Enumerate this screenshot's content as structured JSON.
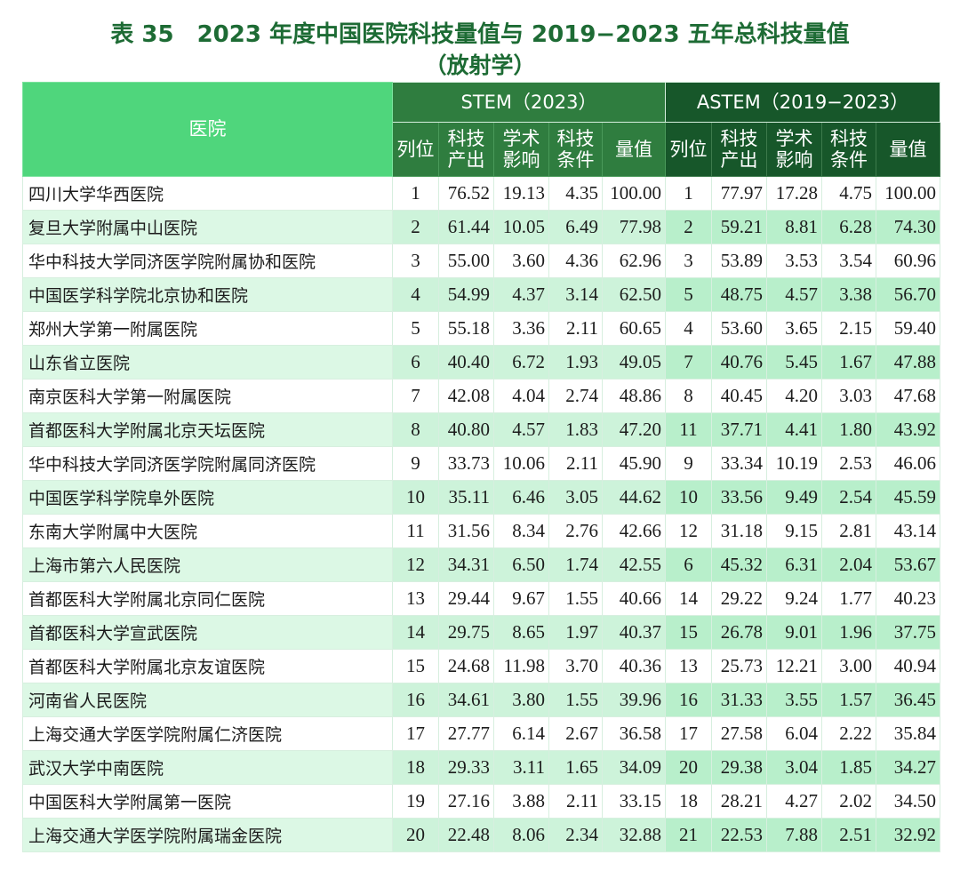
{
  "title": {
    "line1": "表 35　2023 年度中国医院科技量值与 2019−2023 五年总科技量值",
    "line2": "（放射学）"
  },
  "colors": {
    "title": "#1d6b34",
    "hospital_header": "#4fd67c",
    "stem_header": "#2f7d3f",
    "astem_header": "#17572a",
    "stripe": "#cdf3da"
  },
  "header": {
    "hospital": "医院",
    "stem": "STEM（2023）",
    "astem": "ASTEM（2019−2023）",
    "sub": [
      "列位",
      "科技产出",
      "学术影响",
      "科技条件",
      "量值",
      "列位",
      "科技产出",
      "学术影响",
      "科技条件",
      "量值"
    ]
  },
  "rows": [
    [
      "四川大学华西医院",
      "1",
      "76.52",
      "19.13",
      "4.35",
      "100.00",
      "1",
      "77.97",
      "17.28",
      "4.75",
      "100.00"
    ],
    [
      "复旦大学附属中山医院",
      "2",
      "61.44",
      "10.05",
      "6.49",
      "77.98",
      "2",
      "59.21",
      "8.81",
      "6.28",
      "74.30"
    ],
    [
      "华中科技大学同济医学院附属协和医院",
      "3",
      "55.00",
      "3.60",
      "4.36",
      "62.96",
      "3",
      "53.89",
      "3.53",
      "3.54",
      "60.96"
    ],
    [
      "中国医学科学院北京协和医院",
      "4",
      "54.99",
      "4.37",
      "3.14",
      "62.50",
      "5",
      "48.75",
      "4.57",
      "3.38",
      "56.70"
    ],
    [
      "郑州大学第一附属医院",
      "5",
      "55.18",
      "3.36",
      "2.11",
      "60.65",
      "4",
      "53.60",
      "3.65",
      "2.15",
      "59.40"
    ],
    [
      "山东省立医院",
      "6",
      "40.40",
      "6.72",
      "1.93",
      "49.05",
      "7",
      "40.76",
      "5.45",
      "1.67",
      "47.88"
    ],
    [
      "南京医科大学第一附属医院",
      "7",
      "42.08",
      "4.04",
      "2.74",
      "48.86",
      "8",
      "40.45",
      "4.20",
      "3.03",
      "47.68"
    ],
    [
      "首都医科大学附属北京天坛医院",
      "8",
      "40.80",
      "4.57",
      "1.83",
      "47.20",
      "11",
      "37.71",
      "4.41",
      "1.80",
      "43.92"
    ],
    [
      "华中科技大学同济医学院附属同济医院",
      "9",
      "33.73",
      "10.06",
      "2.11",
      "45.90",
      "9",
      "33.34",
      "10.19",
      "2.53",
      "46.06"
    ],
    [
      "中国医学科学院阜外医院",
      "10",
      "35.11",
      "6.46",
      "3.05",
      "44.62",
      "10",
      "33.56",
      "9.49",
      "2.54",
      "45.59"
    ],
    [
      "东南大学附属中大医院",
      "11",
      "31.56",
      "8.34",
      "2.76",
      "42.66",
      "12",
      "31.18",
      "9.15",
      "2.81",
      "43.14"
    ],
    [
      "上海市第六人民医院",
      "12",
      "34.31",
      "6.50",
      "1.74",
      "42.55",
      "6",
      "45.32",
      "6.31",
      "2.04",
      "53.67"
    ],
    [
      "首都医科大学附属北京同仁医院",
      "13",
      "29.44",
      "9.67",
      "1.55",
      "40.66",
      "14",
      "29.22",
      "9.24",
      "1.77",
      "40.23"
    ],
    [
      "首都医科大学宣武医院",
      "14",
      "29.75",
      "8.65",
      "1.97",
      "40.37",
      "15",
      "26.78",
      "9.01",
      "1.96",
      "37.75"
    ],
    [
      "首都医科大学附属北京友谊医院",
      "15",
      "24.68",
      "11.98",
      "3.70",
      "40.36",
      "13",
      "25.73",
      "12.21",
      "3.00",
      "40.94"
    ],
    [
      "河南省人民医院",
      "16",
      "34.61",
      "3.80",
      "1.55",
      "39.96",
      "16",
      "31.33",
      "3.55",
      "1.57",
      "36.45"
    ],
    [
      "上海交通大学医学院附属仁济医院",
      "17",
      "27.77",
      "6.14",
      "2.67",
      "36.58",
      "17",
      "27.58",
      "6.04",
      "2.22",
      "35.84"
    ],
    [
      "武汉大学中南医院",
      "18",
      "29.33",
      "3.11",
      "1.65",
      "34.09",
      "20",
      "29.38",
      "3.04",
      "1.85",
      "34.27"
    ],
    [
      "中国医科大学附属第一医院",
      "19",
      "27.16",
      "3.88",
      "2.11",
      "33.15",
      "18",
      "28.21",
      "4.27",
      "2.02",
      "34.50"
    ],
    [
      "上海交通大学医学院附属瑞金医院",
      "20",
      "22.48",
      "8.06",
      "2.34",
      "32.88",
      "21",
      "22.53",
      "7.88",
      "2.51",
      "32.92"
    ]
  ]
}
